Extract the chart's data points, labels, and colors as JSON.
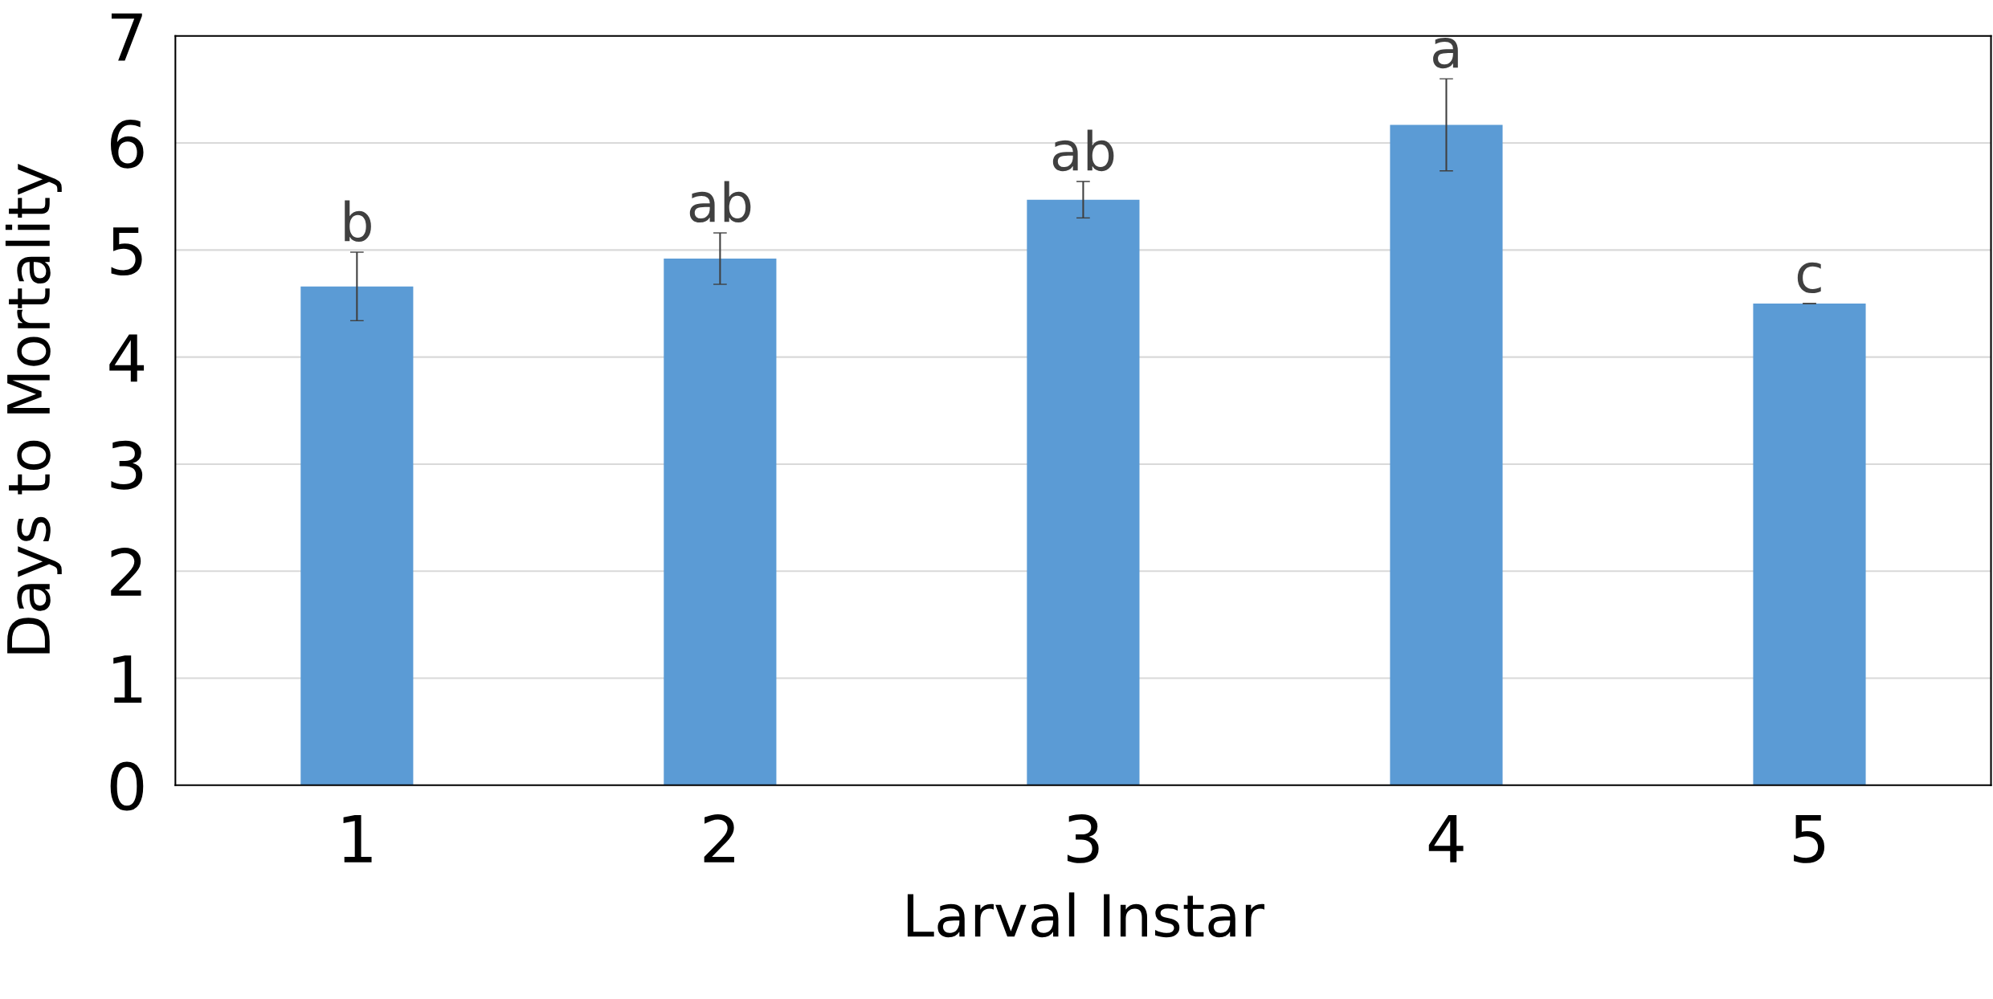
{
  "chart_data": {
    "type": "bar",
    "xlabel": "Larval Instar",
    "ylabel": "Days to Mortality",
    "categories": [
      "1",
      "2",
      "3",
      "4",
      "5"
    ],
    "values": [
      4.66,
      4.92,
      5.47,
      6.17,
      4.5
    ],
    "errors": [
      0.32,
      0.24,
      0.17,
      0.43,
      0.0
    ],
    "color": "#5b9bd5",
    "ylim": [
      0,
      7
    ],
    "yticks": [
      0,
      1,
      2,
      3,
      4,
      5,
      6,
      7
    ],
    "grid": "y",
    "annotations": [
      {
        "text": "b",
        "x": "1",
        "y": 4.98
      },
      {
        "text": "ab",
        "x": "2",
        "y": 5.16
      },
      {
        "text": "ab",
        "x": "3",
        "y": 5.64
      },
      {
        "text": "a",
        "x": "4",
        "y": 6.6
      },
      {
        "text": "c",
        "x": "5",
        "y": 4.5
      }
    ]
  }
}
